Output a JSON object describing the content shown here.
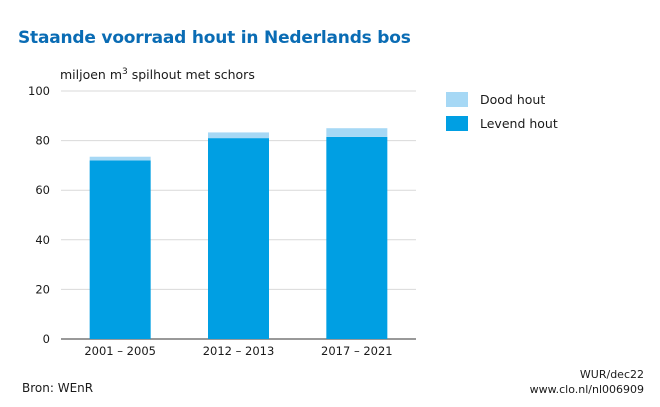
{
  "chart_data": {
    "type": "bar",
    "stacked": true,
    "title": "Staande voorraad hout in Nederlands bos",
    "ylabel_pre": "miljoen m",
    "ylabel_sup": "3",
    "ylabel_post": " spilhout met schors",
    "categories": [
      "2001 – 2005",
      "2012 – 2013",
      "2017 – 2021"
    ],
    "series": [
      {
        "name": "Levend hout",
        "color": "#009fe3",
        "values": [
          72,
          81,
          81.5
        ]
      },
      {
        "name": "Dood hout",
        "color": "#a6d8f5",
        "values": [
          1.5,
          2.3,
          3.5
        ]
      }
    ],
    "ylim": [
      0,
      100
    ],
    "yticks": [
      0,
      20,
      40,
      60,
      80,
      100
    ],
    "grid": true,
    "legend_position": "right"
  },
  "footer": {
    "source": "Bron: WEnR",
    "credit": "WUR/dec22",
    "url": "www.clo.nl/nl006909"
  }
}
